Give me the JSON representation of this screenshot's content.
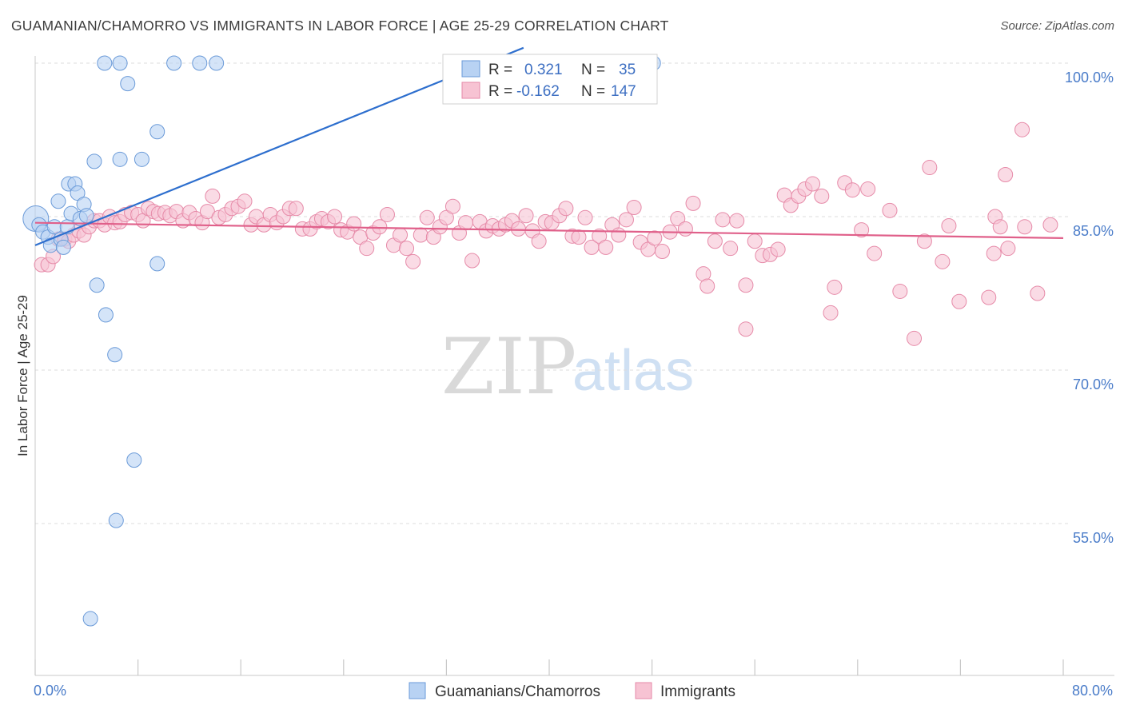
{
  "title": "GUAMANIAN/CHAMORRO VS IMMIGRANTS IN LABOR FORCE | AGE 25-29 CORRELATION CHART",
  "source": "Source: ZipAtlas.com",
  "watermark": {
    "zip": "ZIP",
    "atlas": "atlas"
  },
  "legend": {
    "r_label": "R =",
    "n_label": "N =",
    "series": [
      {
        "r": "0.321",
        "n": "35"
      },
      {
        "r": "-0.162",
        "n": "147"
      }
    ]
  },
  "bottom_legend": [
    "Guamanians/Chamorros",
    "Immigrants"
  ],
  "colors": {
    "blue_fill": "#b8d2f3",
    "blue_stroke": "#6a9ad8",
    "blue_line": "#2e6fce",
    "pink_fill": "#f7c3d3",
    "pink_stroke": "#e68aa8",
    "pink_line": "#e0608a",
    "tick_text": "#4a7cc9",
    "grid": "#dcdcdc"
  },
  "chart_data": {
    "type": "scatter",
    "title": "GUAMANIAN/CHAMORRO VS IMMIGRANTS IN LABOR FORCE | AGE 25-29 CORRELATION CHART",
    "xlabel": "",
    "ylabel": "In Labor Force | Age 25-29",
    "xlim": [
      0,
      80
    ],
    "ylim": [
      40,
      102
    ],
    "x_tick_labels": [
      "0.0%",
      "80.0%"
    ],
    "y_ticks": [
      55,
      70,
      85,
      100
    ],
    "y_tick_labels": [
      "55.0%",
      "70.0%",
      "85.0%",
      "100.0%"
    ],
    "grid": true,
    "legend_position": "top-center",
    "series": [
      {
        "name": "Guamanians/Chamorros",
        "r": 0.321,
        "n": 35,
        "trend": {
          "x": [
            0,
            38
          ],
          "y": [
            82.2,
            101.5
          ]
        },
        "points": [
          [
            0.05,
            84.8
          ],
          [
            0.3,
            84.2
          ],
          [
            0.6,
            83.5
          ],
          [
            1.0,
            83.0
          ],
          [
            1.2,
            82.2
          ],
          [
            1.5,
            84.0
          ],
          [
            1.8,
            86.5
          ],
          [
            2.0,
            82.8
          ],
          [
            2.2,
            82.0
          ],
          [
            2.5,
            84.0
          ],
          [
            2.6,
            88.2
          ],
          [
            2.8,
            85.3
          ],
          [
            3.1,
            88.2
          ],
          [
            3.3,
            87.3
          ],
          [
            3.5,
            84.8
          ],
          [
            3.8,
            86.2
          ],
          [
            4.0,
            85.1
          ],
          [
            4.6,
            90.4
          ],
          [
            4.8,
            78.3
          ],
          [
            5.4,
            100.0
          ],
          [
            5.5,
            75.4
          ],
          [
            6.2,
            71.5
          ],
          [
            6.3,
            55.3
          ],
          [
            6.6,
            100.0
          ],
          [
            6.6,
            90.6
          ],
          [
            7.2,
            98.0
          ],
          [
            7.7,
            61.2
          ],
          [
            8.3,
            90.6
          ],
          [
            9.5,
            93.3
          ],
          [
            9.5,
            80.4
          ],
          [
            10.8,
            100.0
          ],
          [
            12.8,
            100.0
          ],
          [
            14.1,
            100.0
          ],
          [
            48.1,
            100.0
          ],
          [
            4.3,
            45.7
          ]
        ]
      },
      {
        "name": "Immigrants",
        "r": -0.162,
        "n": 147,
        "trend": {
          "x": [
            0,
            80
          ],
          "y": [
            84.4,
            82.9
          ]
        },
        "points": [
          [
            0.5,
            80.3
          ],
          [
            1.0,
            80.3
          ],
          [
            1.4,
            81.1
          ],
          [
            1.8,
            82.8
          ],
          [
            2.3,
            82.8
          ],
          [
            2.6,
            82.6
          ],
          [
            3.0,
            83.2
          ],
          [
            3.4,
            83.6
          ],
          [
            3.8,
            83.2
          ],
          [
            4.2,
            84.0
          ],
          [
            4.6,
            84.6
          ],
          [
            5.0,
            84.6
          ],
          [
            5.4,
            84.2
          ],
          [
            5.8,
            85.0
          ],
          [
            6.2,
            84.4
          ],
          [
            6.6,
            84.5
          ],
          [
            7.0,
            85.2
          ],
          [
            7.5,
            85.4
          ],
          [
            8.0,
            85.2
          ],
          [
            8.4,
            84.6
          ],
          [
            8.8,
            85.8
          ],
          [
            9.2,
            85.5
          ],
          [
            9.6,
            85.3
          ],
          [
            10.1,
            85.4
          ],
          [
            10.5,
            85.1
          ],
          [
            11.0,
            85.5
          ],
          [
            11.5,
            84.6
          ],
          [
            12.0,
            85.4
          ],
          [
            12.5,
            84.8
          ],
          [
            13.0,
            84.4
          ],
          [
            13.4,
            85.5
          ],
          [
            13.8,
            87.0
          ],
          [
            14.3,
            84.9
          ],
          [
            14.8,
            85.2
          ],
          [
            15.3,
            85.8
          ],
          [
            15.8,
            86.0
          ],
          [
            16.3,
            86.5
          ],
          [
            16.8,
            84.2
          ],
          [
            17.2,
            85.0
          ],
          [
            17.8,
            84.2
          ],
          [
            18.3,
            85.2
          ],
          [
            18.8,
            84.4
          ],
          [
            19.3,
            85.0
          ],
          [
            19.8,
            85.8
          ],
          [
            20.3,
            85.8
          ],
          [
            20.8,
            83.8
          ],
          [
            21.4,
            83.8
          ],
          [
            21.9,
            84.5
          ],
          [
            22.3,
            84.8
          ],
          [
            22.8,
            84.5
          ],
          [
            23.3,
            85.0
          ],
          [
            23.8,
            83.7
          ],
          [
            24.3,
            83.5
          ],
          [
            24.8,
            84.3
          ],
          [
            25.3,
            83.0
          ],
          [
            25.8,
            81.9
          ],
          [
            26.3,
            83.4
          ],
          [
            26.8,
            84.0
          ],
          [
            27.4,
            85.2
          ],
          [
            27.9,
            82.2
          ],
          [
            28.4,
            83.2
          ],
          [
            28.9,
            81.9
          ],
          [
            29.4,
            80.6
          ],
          [
            30.0,
            83.2
          ],
          [
            30.5,
            84.9
          ],
          [
            31.0,
            83.0
          ],
          [
            31.5,
            84.0
          ],
          [
            32.0,
            84.9
          ],
          [
            32.5,
            86.0
          ],
          [
            33.0,
            83.4
          ],
          [
            33.5,
            84.4
          ],
          [
            34.0,
            80.7
          ],
          [
            34.6,
            84.5
          ],
          [
            35.1,
            83.6
          ],
          [
            35.6,
            84.1
          ],
          [
            36.1,
            83.8
          ],
          [
            36.6,
            84.2
          ],
          [
            37.1,
            84.6
          ],
          [
            37.6,
            83.8
          ],
          [
            38.2,
            85.1
          ],
          [
            38.7,
            83.6
          ],
          [
            39.2,
            82.6
          ],
          [
            39.7,
            84.5
          ],
          [
            40.2,
            84.4
          ],
          [
            40.8,
            85.1
          ],
          [
            41.3,
            85.8
          ],
          [
            41.8,
            83.1
          ],
          [
            42.3,
            83.0
          ],
          [
            42.8,
            84.9
          ],
          [
            43.3,
            82.0
          ],
          [
            43.9,
            83.1
          ],
          [
            44.4,
            82.0
          ],
          [
            44.9,
            84.2
          ],
          [
            45.4,
            83.2
          ],
          [
            46.0,
            84.7
          ],
          [
            46.6,
            85.9
          ],
          [
            47.1,
            82.5
          ],
          [
            47.7,
            81.8
          ],
          [
            48.2,
            82.9
          ],
          [
            48.8,
            81.6
          ],
          [
            49.4,
            83.5
          ],
          [
            50.0,
            84.8
          ],
          [
            50.6,
            83.8
          ],
          [
            51.2,
            86.3
          ],
          [
            52.0,
            79.4
          ],
          [
            52.3,
            78.2
          ],
          [
            52.9,
            82.6
          ],
          [
            53.5,
            84.7
          ],
          [
            54.1,
            81.9
          ],
          [
            54.6,
            84.6
          ],
          [
            55.3,
            78.3
          ],
          [
            55.3,
            74.0
          ],
          [
            56.0,
            82.6
          ],
          [
            56.6,
            81.2
          ],
          [
            57.2,
            81.3
          ],
          [
            57.8,
            81.8
          ],
          [
            58.3,
            87.1
          ],
          [
            58.8,
            86.1
          ],
          [
            59.4,
            87.0
          ],
          [
            59.9,
            87.7
          ],
          [
            60.5,
            88.2
          ],
          [
            61.2,
            87.0
          ],
          [
            61.9,
            75.6
          ],
          [
            62.2,
            78.1
          ],
          [
            63.0,
            88.3
          ],
          [
            63.6,
            87.6
          ],
          [
            64.3,
            83.7
          ],
          [
            64.8,
            87.7
          ],
          [
            65.3,
            81.4
          ],
          [
            66.5,
            85.6
          ],
          [
            67.3,
            77.7
          ],
          [
            68.4,
            73.1
          ],
          [
            69.2,
            82.6
          ],
          [
            69.6,
            89.8
          ],
          [
            70.6,
            80.6
          ],
          [
            71.1,
            84.1
          ],
          [
            71.9,
            76.7
          ],
          [
            74.2,
            77.1
          ],
          [
            74.6,
            81.4
          ],
          [
            75.5,
            89.1
          ],
          [
            74.7,
            85.0
          ],
          [
            75.7,
            81.9
          ],
          [
            76.8,
            93.5
          ],
          [
            78.0,
            77.5
          ],
          [
            75.1,
            84.0
          ],
          [
            77.0,
            84.0
          ],
          [
            79.0,
            84.2
          ]
        ]
      }
    ]
  }
}
